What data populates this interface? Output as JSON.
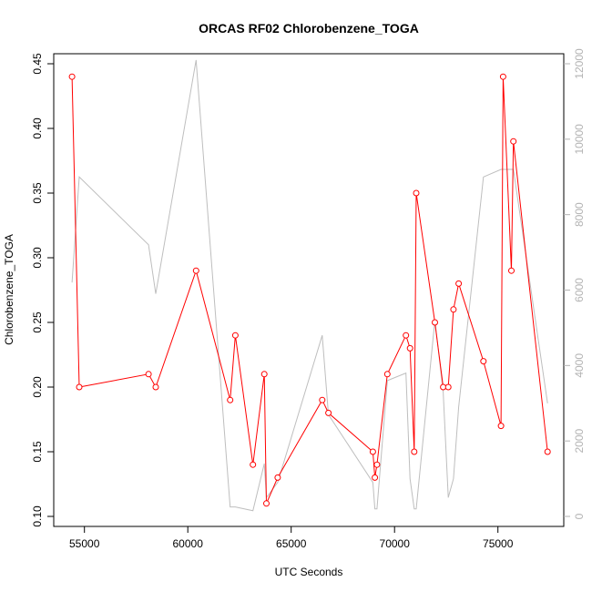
{
  "chart_data": {
    "type": "line",
    "title": "ORCAS RF02 Chlorobenzene_TOGA",
    "xlabel": "UTC Seconds",
    "ylabel": "Chlorobenzene_TOGA",
    "xlim": [
      54000,
      77700
    ],
    "ylim": [
      0.1,
      0.45
    ],
    "y2lim": [
      0,
      12000
    ],
    "x_ticks": [
      55000,
      60000,
      65000,
      70000,
      75000
    ],
    "y_ticks": [
      0.1,
      0.15,
      0.2,
      0.25,
      0.3,
      0.35,
      0.4,
      0.45
    ],
    "y_tick_labels": [
      "0.10",
      "0.15",
      "0.20",
      "0.25",
      "0.30",
      "0.35",
      "0.40",
      "0.45"
    ],
    "y2_ticks": [
      0,
      2000,
      4000,
      6000,
      8000,
      10000,
      12000
    ],
    "grid": false,
    "colors": {
      "primary": "#ff0000",
      "secondary": "#bebebe",
      "secondary_axis": "#b3b3b3"
    },
    "series": [
      {
        "axis": "left",
        "color": "#ff0000",
        "markers": true,
        "x": [
          54400,
          54750,
          58100,
          58450,
          60400,
          62050,
          62300,
          63150,
          63700,
          63800,
          64350,
          66500,
          66800,
          68950,
          69050,
          69150,
          69650,
          70550,
          70750,
          70950,
          71050,
          71950,
          72350,
          72600,
          72850,
          73100,
          74300,
          75150,
          75250,
          75650,
          75750,
          77400
        ],
        "y": [
          0.44,
          0.2,
          0.21,
          0.2,
          0.29,
          0.19,
          0.24,
          0.14,
          0.21,
          0.11,
          0.13,
          0.19,
          0.18,
          0.15,
          0.13,
          0.14,
          0.21,
          0.24,
          0.23,
          0.15,
          0.35,
          0.25,
          0.2,
          0.2,
          0.26,
          0.28,
          0.22,
          0.17,
          0.44,
          0.29,
          0.39,
          0.15
        ]
      },
      {
        "axis": "right",
        "color": "#bebebe",
        "markers": false,
        "x": [
          54400,
          54750,
          58100,
          58450,
          60400,
          62050,
          62300,
          63150,
          63700,
          63800,
          64350,
          66500,
          66800,
          68950,
          69050,
          69150,
          69650,
          70550,
          70750,
          70950,
          71050,
          71950,
          72350,
          72600,
          72850,
          73100,
          74300,
          75150,
          75250,
          75650,
          75750,
          77400
        ],
        "y": [
          6200,
          9000,
          7200,
          5900,
          12100,
          250,
          250,
          150,
          1400,
          500,
          900,
          4800,
          2700,
          900,
          200,
          200,
          3600,
          3800,
          1000,
          200,
          200,
          5200,
          3300,
          500,
          1000,
          2900,
          9000,
          9200,
          9200,
          9200,
          9200,
          3000
        ]
      }
    ]
  }
}
